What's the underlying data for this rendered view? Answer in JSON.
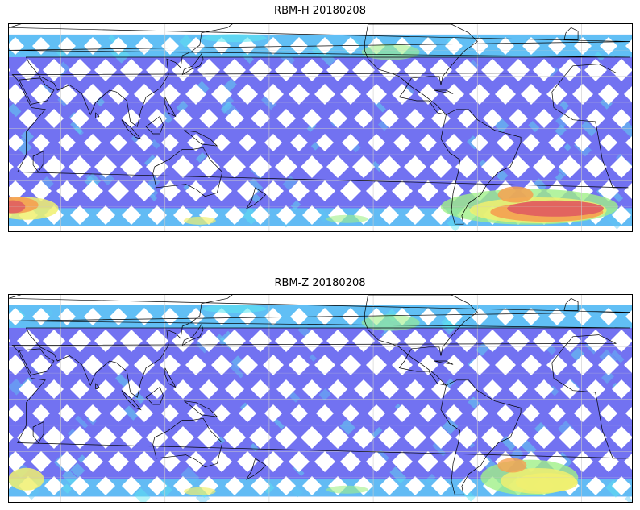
{
  "panels": [
    {
      "id": "top",
      "title": "RBM-H 20180208",
      "high_region": "strong"
    },
    {
      "id": "bottom",
      "title": "RBM-Z 20180208",
      "high_region": "weak"
    }
  ],
  "map": {
    "projection": "equirectangular",
    "lon_range": [
      30,
      390
    ],
    "lat_range": [
      -60,
      60
    ],
    "grid": true,
    "coastlines": true
  },
  "colors": {
    "base_blue": "#6a6af0",
    "light_blue": "#5fc8f5",
    "cyan": "#5ee6f0",
    "green": "#a0f088",
    "yellow": "#f0f070",
    "orange": "#f5a050",
    "red": "#e06060",
    "coast": "#000000",
    "grid": "#cccccc"
  }
}
